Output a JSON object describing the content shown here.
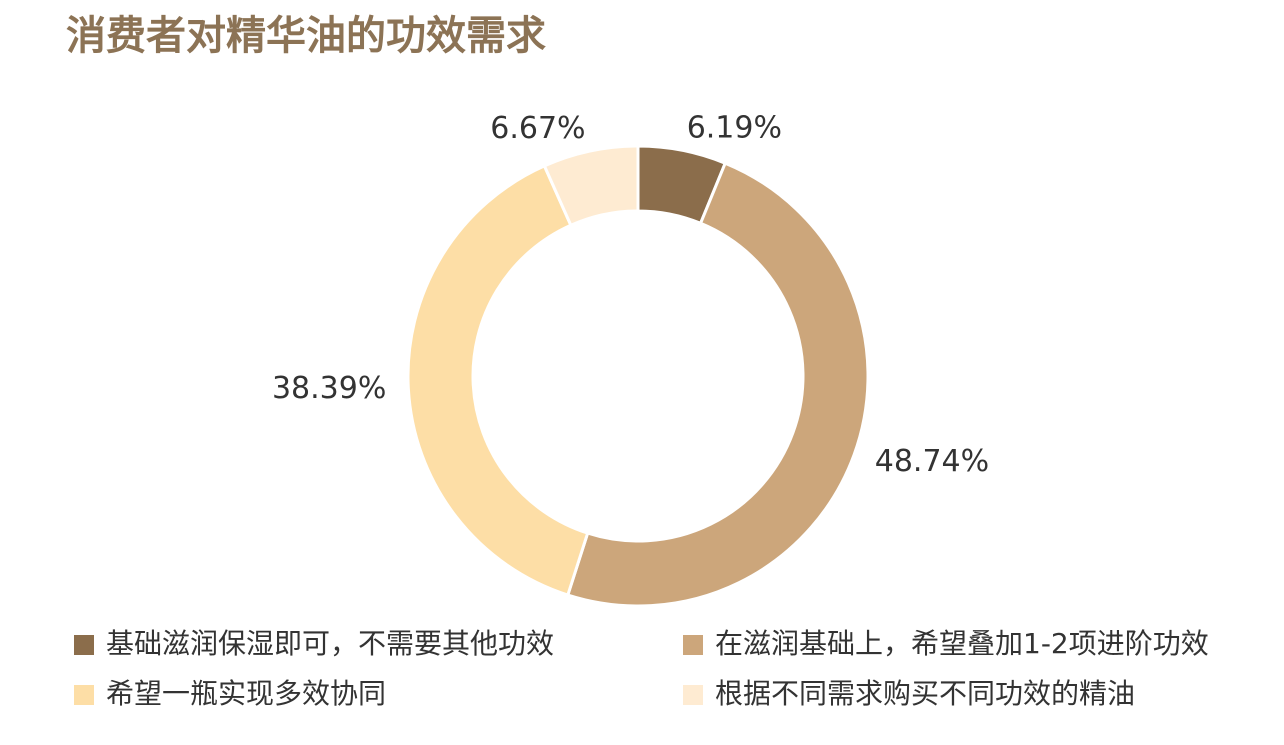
{
  "chart_data": {
    "type": "donut",
    "title": "消费者对精华油的功效需求",
    "categories": [
      "基础滋润保湿即可，不需要其他功效",
      "在滋润基础上，希望叠加1-2项进阶功效",
      "希望一瓶实现多效协同",
      "根据不同需求购买不同功效的精油"
    ],
    "values": [
      6.19,
      48.74,
      38.39,
      6.67
    ],
    "value_labels": [
      "6.19%",
      "48.74%",
      "38.39%",
      "6.67%"
    ],
    "colors": [
      "#8b6d4b",
      "#cca67b",
      "#fddea6",
      "#feebd2"
    ]
  }
}
